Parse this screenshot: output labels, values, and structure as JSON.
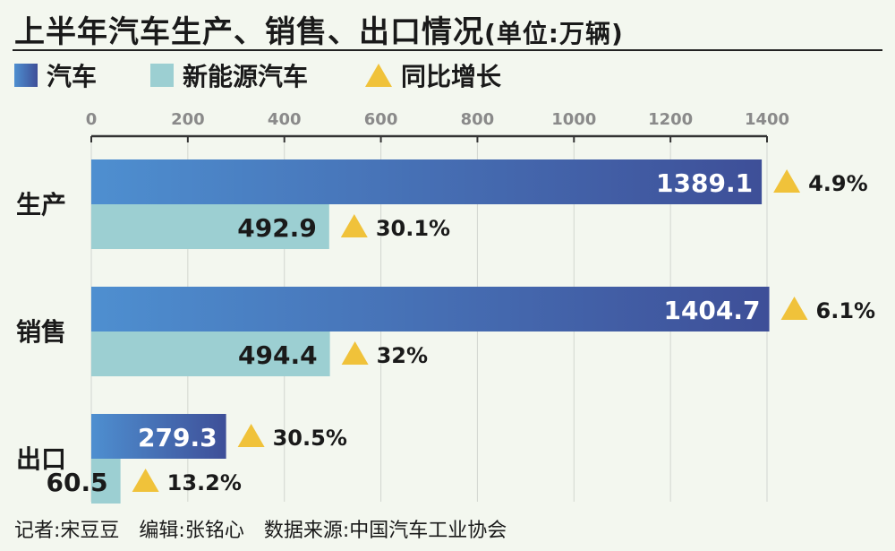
{
  "title": {
    "main": "上半年汽车生产、销售、出口情况",
    "unit": "(单位:万辆)"
  },
  "legend": [
    {
      "label": "汽车",
      "color": "#3d5aa8",
      "shape": "square"
    },
    {
      "label": "新能源汽车",
      "color": "#9ccfd2",
      "shape": "square"
    },
    {
      "label": "同比增长",
      "color": "#f0c23a",
      "shape": "triangle-up-icon"
    }
  ],
  "chart_data": {
    "type": "bar",
    "orientation": "horizontal",
    "categories": [
      "生产",
      "销售",
      "出口"
    ],
    "series": [
      {
        "name": "汽车",
        "values": [
          1389.1,
          1404.7,
          279.3
        ],
        "growth": [
          "4.9%",
          "6.1%",
          "30.5%"
        ],
        "color_start": "#4e8fd0",
        "color_end": "#3e4f98"
      },
      {
        "name": "新能源汽车",
        "values": [
          492.9,
          494.4,
          60.5
        ],
        "growth": [
          "30.1%",
          "32%",
          "13.2%"
        ],
        "color": "#9ccfd2"
      }
    ],
    "xlim": [
      0,
      1400
    ],
    "xticks": [
      0,
      200,
      400,
      600,
      800,
      1000,
      1200,
      1400
    ],
    "grid": true,
    "legend_position": "top-left",
    "label_colors": {
      "inside": "#ffffff",
      "outside": "#1a1a1a",
      "tick": "#8a8a8a"
    }
  },
  "footer": {
    "reporter": "记者:宋豆豆",
    "editor": "编辑:张铭心",
    "source": "数据来源:中国汽车工业协会"
  }
}
